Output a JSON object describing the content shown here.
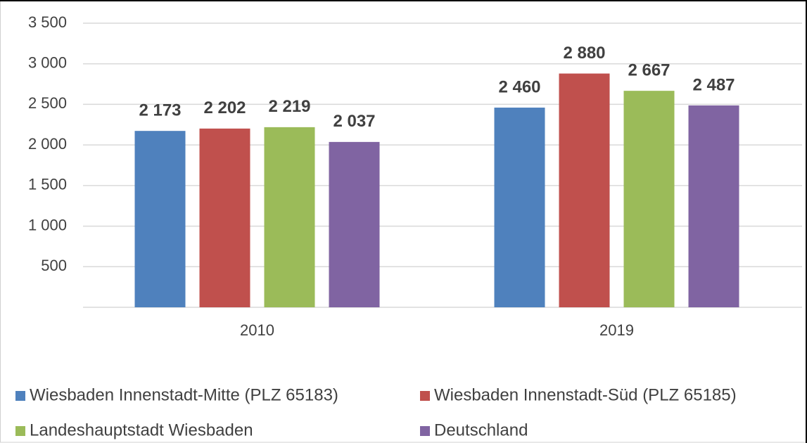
{
  "chart_data": {
    "type": "bar",
    "categories": [
      "2010",
      "2019"
    ],
    "series": [
      {
        "name": "Wiesbaden Innenstadt-Mitte (PLZ 65183)",
        "color": "#4f81bd",
        "values": [
          2173,
          2460
        ],
        "value_labels": [
          "2 173",
          "2 460"
        ]
      },
      {
        "name": "Wiesbaden Innenstadt-Süd (PLZ 65185)",
        "color": "#c0504d",
        "values": [
          2202,
          2880
        ],
        "value_labels": [
          "2 202",
          "2 880"
        ]
      },
      {
        "name": "Landeshauptstadt Wiesbaden",
        "color": "#9bbb59",
        "values": [
          2219,
          2667
        ],
        "value_labels": [
          "2 219",
          "2 667"
        ]
      },
      {
        "name": "Deutschland",
        "color": "#8064a2",
        "values": [
          2037,
          2487
        ],
        "value_labels": [
          "2 037",
          "2 487"
        ]
      }
    ],
    "ylim": [
      0,
      3500
    ],
    "yticks": [
      500,
      {
        "value": 1000,
        "label": "1 000"
      },
      {
        "value": 1500,
        "label": "1 500"
      },
      {
        "value": 2000,
        "label": "2 000"
      },
      {
        "value": 2500,
        "label": "2 500"
      },
      {
        "value": 3000,
        "label": "3 000"
      },
      {
        "value": 3500,
        "label": "3 500"
      }
    ],
    "grid": true,
    "legend": "bottom"
  }
}
